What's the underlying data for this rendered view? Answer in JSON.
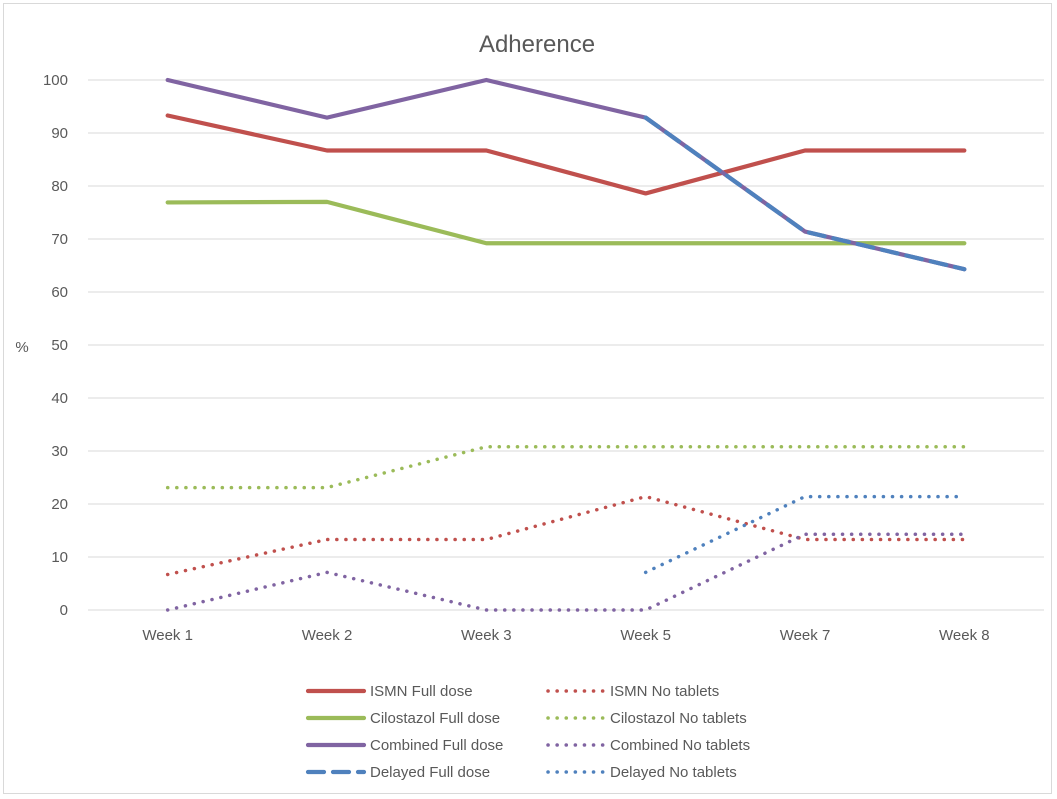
{
  "chart_data": {
    "type": "line",
    "title": "Adherence",
    "xlabel": "",
    "ylabel": "%",
    "ylim": [
      0,
      100
    ],
    "yticks": [
      "0",
      "10",
      "20",
      "30",
      "40",
      "50",
      "60",
      "70",
      "80",
      "90",
      "100"
    ],
    "grid": true,
    "legend_position": "bottom",
    "categories": [
      "Week 1",
      "Week 2",
      "Week 3",
      "Week 5",
      "Week 7",
      "Week 8"
    ],
    "series": [
      {
        "name": "ISMN Full dose",
        "color": "#c0504d",
        "style": "solid",
        "values": [
          93.3,
          86.7,
          86.7,
          78.6,
          86.7,
          86.7
        ]
      },
      {
        "name": "ISMN No tablets",
        "color": "#c0504d",
        "style": "dotted",
        "values": [
          6.7,
          13.3,
          13.3,
          21.4,
          13.3,
          13.3
        ]
      },
      {
        "name": "Cilostazol Full dose",
        "color": "#9bbb59",
        "style": "solid",
        "values": [
          76.9,
          77.0,
          69.2,
          69.2,
          69.2,
          69.2
        ]
      },
      {
        "name": "Cilostazol No tablets",
        "color": "#9bbb59",
        "style": "dotted",
        "values": [
          23.1,
          23.1,
          30.8,
          30.8,
          30.8,
          30.8
        ]
      },
      {
        "name": "Combined Full dose",
        "color": "#8064a2",
        "style": "solid",
        "values": [
          100,
          92.9,
          100,
          92.9,
          71.4,
          64.3
        ]
      },
      {
        "name": "Combined No tablets",
        "color": "#8064a2",
        "style": "dotted",
        "values": [
          0,
          7.1,
          0,
          0,
          14.3,
          14.3
        ]
      },
      {
        "name": "Delayed  Full dose",
        "color": "#4f81bd",
        "style": "dashed",
        "values": [
          null,
          null,
          null,
          92.9,
          71.4,
          64.3
        ]
      },
      {
        "name": "Delayed  No tablets",
        "color": "#4f81bd",
        "style": "dotted",
        "values": [
          null,
          null,
          null,
          7.1,
          21.4,
          21.4
        ]
      }
    ]
  }
}
